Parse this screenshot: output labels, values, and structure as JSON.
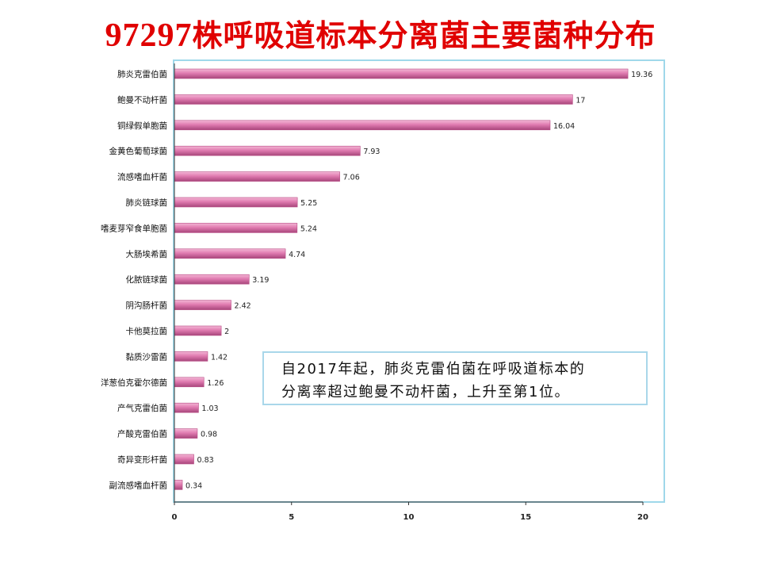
{
  "title": {
    "number": "97297",
    "text": "株呼吸道标本分离菌主要菌种分布"
  },
  "callout": {
    "line1": "自2017年起，肺炎克雷伯菌在呼吸道标本的",
    "line2": "分离率超过鲍曼不动杆菌，上升至第1位。"
  },
  "colors": {
    "bar": "#e07bb0",
    "bar_dark": "#b94d86",
    "plot_border": "#9fd8ea",
    "axis": "#333333",
    "title": "#e00000"
  },
  "chart_data": {
    "type": "bar",
    "orientation": "horizontal",
    "categories": [
      "肺炎克雷伯菌",
      "鲍曼不动杆菌",
      "铜绿假单胞菌",
      "金黄色葡萄球菌",
      "流感嗜血杆菌",
      "肺炎链球菌",
      "嗜麦芽窄食单胞菌",
      "大肠埃希菌",
      "化脓链球菌",
      "阴沟肠杆菌",
      "卡他莫拉菌",
      "黏质沙雷菌",
      "洋葱伯克霍尔德菌",
      "产气克雷伯菌",
      "产酸克雷伯菌",
      "奇异变形杆菌",
      "副流感嗜血杆菌"
    ],
    "values": [
      19.36,
      17,
      16.04,
      7.93,
      7.06,
      5.25,
      5.24,
      4.74,
      3.19,
      2.42,
      2,
      1.42,
      1.26,
      1.03,
      0.98,
      0.83,
      0.34
    ],
    "data_labels": [
      "19.36",
      "17",
      "16.04",
      "7.93",
      "7.06",
      "5.25",
      "5.24",
      "4.74",
      "3.19",
      "2.42",
      "2",
      "1.42",
      "1.26",
      "1.03",
      "0.98",
      "0.83",
      "0.34"
    ],
    "xlim": [
      0,
      20
    ],
    "xticks": [
      0,
      5,
      10,
      15,
      20
    ],
    "grid": false,
    "legend": "none"
  }
}
